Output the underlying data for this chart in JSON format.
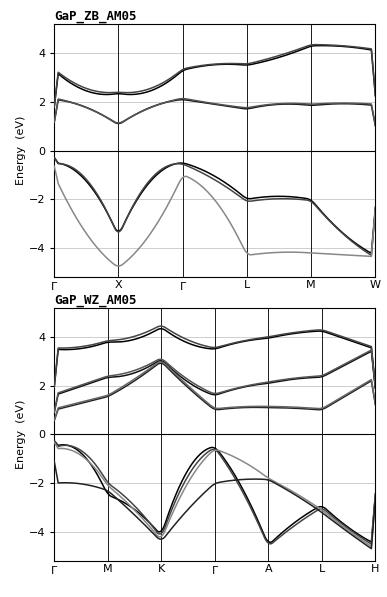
{
  "title_zb": "GaP_ZB_AM05",
  "title_wz": "GaP_WZ_AM05",
  "ylabel": "Energy  (eV)",
  "ylim": [
    -5.2,
    5.2
  ],
  "yticks": [
    -4,
    -2,
    0,
    2,
    4
  ],
  "zb_kpoints": [
    "Γ",
    "X",
    "Γ",
    "L",
    "M",
    "W"
  ],
  "zb_kpos": [
    0.0,
    0.2,
    0.4,
    0.6,
    0.8,
    1.0
  ],
  "wz_kpoints": [
    "Γ",
    "M",
    "K",
    "Γ",
    "A",
    "L",
    "H"
  ],
  "wz_kpos": [
    0.0,
    0.1667,
    0.3333,
    0.5,
    0.6667,
    0.8333,
    1.0
  ],
  "line_width": 1.1,
  "grid_color": "#bbbbbb",
  "fermi_level": 0.0
}
